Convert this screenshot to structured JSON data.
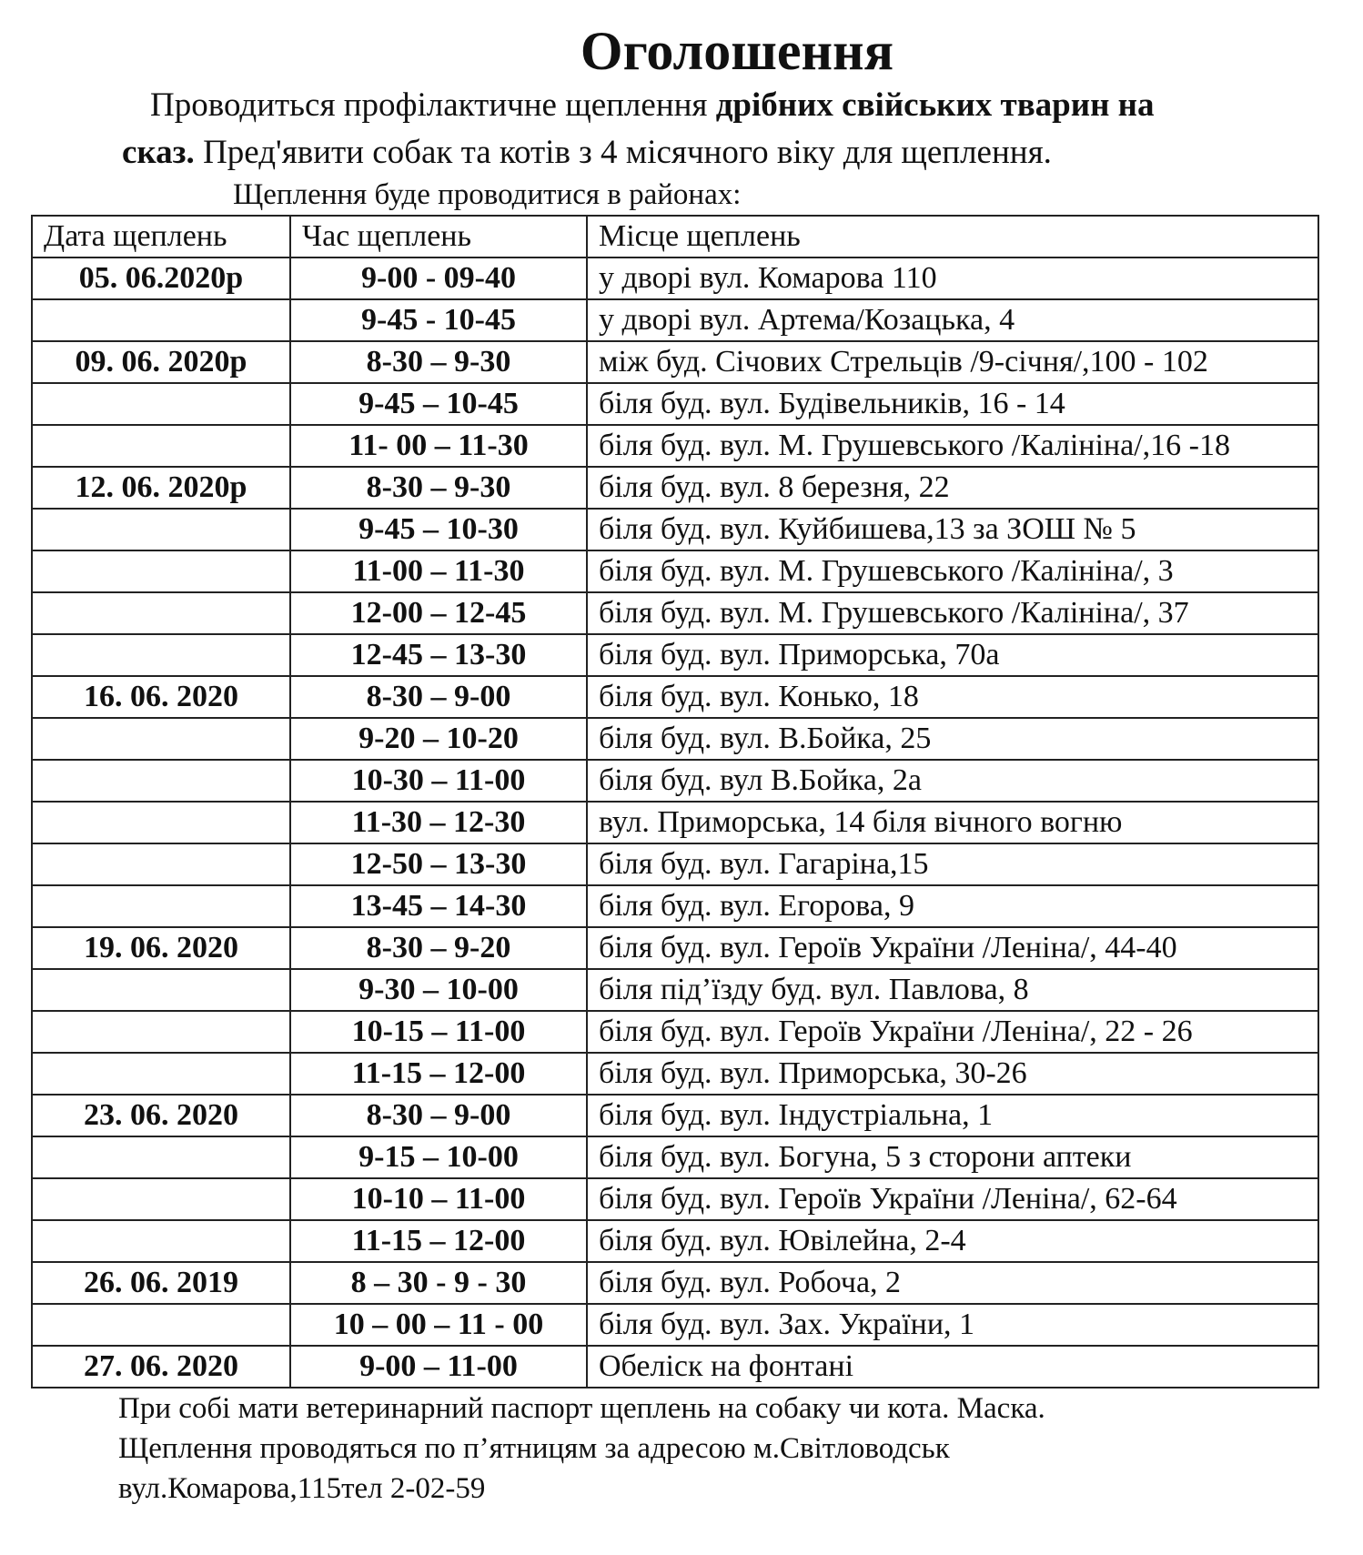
{
  "title": "Оголошення",
  "intro": {
    "line1_normal": "Проводиться профілактичне щеплення ",
    "line1_bold": "дрібних свійських тварин на",
    "line2_bold": "сказ.",
    "line2_normal": " Пред'явити собак та котів з 4  місячного віку для щеплення."
  },
  "subtitle": "Щеплення буде проводитися в районах:",
  "table": {
    "headers": [
      "Дата щеплень",
      "Час щеплень",
      "Місце щеплень"
    ],
    "rows": [
      [
        "05. 06.2020р",
        "9-00 - 09-40",
        "у дворі вул. Комарова 110"
      ],
      [
        "",
        "9-45  - 10-45",
        "у дворі вул. Артема/Козацька, 4"
      ],
      [
        "09. 06. 2020р",
        "8-30 – 9-30",
        "між буд. Січових Стрельців /9-січня/,100 - 102"
      ],
      [
        "",
        "9-45 – 10-45",
        "біля буд. вул. Будівельників, 16 - 14"
      ],
      [
        "",
        "11- 00 – 11-30",
        "біля буд. вул. М. Грушевського /Калініна/,16 -18"
      ],
      [
        "12. 06. 2020р",
        "8-30 – 9-30",
        "біля буд. вул. 8 березня, 22"
      ],
      [
        "",
        "9-45 – 10-30",
        "біля буд. вул. Куйбишева,13 за ЗОШ № 5"
      ],
      [
        "",
        "11-00 – 11-30",
        "біля буд. вул. М. Грушевського /Калініна/, 3"
      ],
      [
        "",
        "12-00 – 12-45",
        "біля буд. вул. М. Грушевського /Калініна/, 37"
      ],
      [
        "",
        "12-45 – 13-30",
        "біля буд. вул. Приморська, 70а"
      ],
      [
        "16. 06. 2020",
        "8-30 – 9-00",
        "біля буд. вул. Конько, 18"
      ],
      [
        "",
        "9-20 – 10-20",
        "біля буд. вул. В.Бойка, 25"
      ],
      [
        "",
        "10-30 – 11-00",
        "біля буд. вул В.Бойка, 2а"
      ],
      [
        "",
        "11-30 – 12-30",
        "вул. Приморська, 14 біля вічного вогню"
      ],
      [
        "",
        "12-50 – 13-30",
        "біля буд. вул. Гагаріна,15"
      ],
      [
        "",
        "13-45 – 14-30",
        "біля буд. вул. Егорова, 9"
      ],
      [
        "19. 06. 2020",
        "8-30 – 9-20",
        "біля буд. вул. Героїв України /Леніна/, 44-40"
      ],
      [
        "",
        "9-30 – 10-00",
        "біля під’їзду буд. вул. Павлова, 8"
      ],
      [
        "",
        "10-15 – 11-00",
        "біля буд. вул. Героїв України /Леніна/, 22 - 26"
      ],
      [
        "",
        "11-15 – 12-00",
        "біля буд. вул. Приморська, 30-26"
      ],
      [
        "23. 06. 2020",
        "8-30 – 9-00",
        "біля буд. вул. Індустріальна, 1"
      ],
      [
        "",
        "9-15 – 10-00",
        "біля буд. вул. Богуна, 5 з сторони аптеки"
      ],
      [
        "",
        "10-10 – 11-00",
        "біля буд. вул. Героїв України /Леніна/, 62-64"
      ],
      [
        "",
        "11-15 – 12-00",
        "біля буд. вул. Ювілейна, 2-4"
      ],
      [
        "26. 06. 2019",
        "8 – 30 - 9 - 30",
        "біля буд. вул. Робоча, 2"
      ],
      [
        "",
        "10 – 00  – 11 - 00",
        "біля буд. вул. Зах. України, 1"
      ],
      [
        "27. 06. 2020",
        "9-00  – 11-00",
        "Обеліск на  фонтані"
      ]
    ]
  },
  "footer": [
    "При собі мати  ветеринарний паспорт щеплень на собаку чи кота. Маска.",
    "Щеплення проводяться по п’ятницям за адресою м.Світловодськ",
    "вул.Комарова,115тел 2-02-59"
  ]
}
